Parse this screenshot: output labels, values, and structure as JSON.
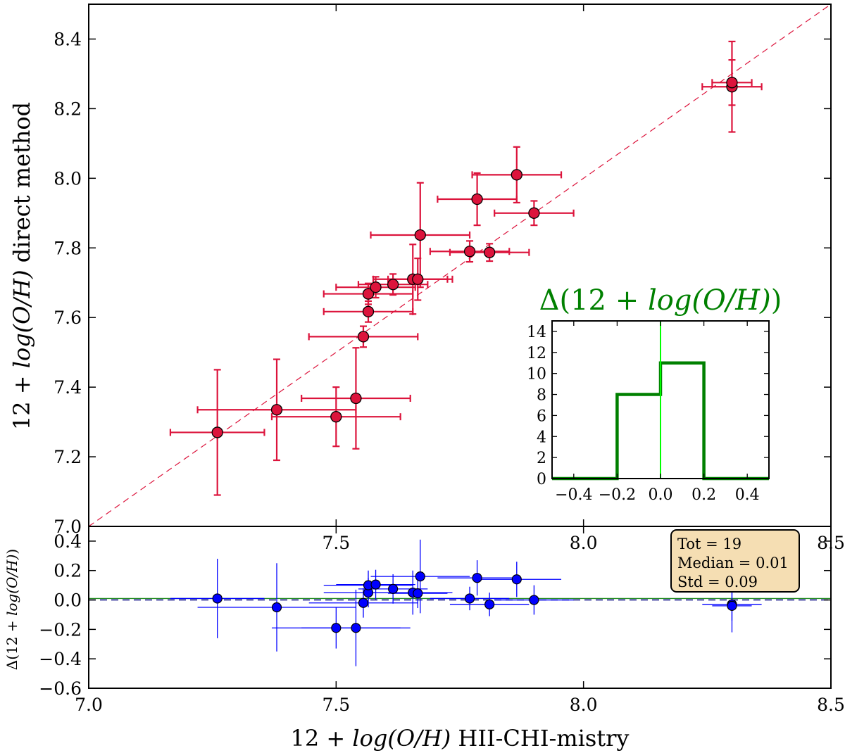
{
  "colors": {
    "main_points": "#dc143c",
    "residual_points": "#0000ff",
    "histogram": "#008000",
    "inset_zero_line": "#00ff00",
    "stats_box_fill": "#f5deb3",
    "residual_median_line": "#228b22",
    "residual_zero_line": "#000080"
  },
  "chart_data": [
    {
      "id": "main",
      "type": "scatter",
      "xlabel_prefix": "12 + ",
      "xlabel_math": "log(O/H)",
      "xlabel_suffix": " HII-CHI-mistry",
      "ylabel_prefix": "12 + ",
      "ylabel_math": "log(O/H)",
      "ylabel_suffix": " direct method",
      "xlim": [
        7.0,
        8.5
      ],
      "ylim": [
        7.0,
        8.5
      ],
      "xticks": [
        "7.5",
        "8.0",
        "8.5"
      ],
      "yticks": [
        "7.0",
        "7.2",
        "7.4",
        "7.6",
        "7.8",
        "8.0",
        "8.2",
        "8.4"
      ],
      "identity_line": true,
      "points": [
        {
          "x": 7.26,
          "y": 7.27,
          "xerr": 0.095,
          "yerr": 0.18
        },
        {
          "x": 7.38,
          "y": 7.335,
          "xerr": 0.16,
          "yerr": 0.145
        },
        {
          "x": 7.5,
          "y": 7.315,
          "xerr": 0.13,
          "yerr": 0.085
        },
        {
          "x": 7.54,
          "y": 7.368,
          "xerr": 0.11,
          "yerr": 0.145
        },
        {
          "x": 7.555,
          "y": 7.545,
          "xerr": 0.11,
          "yerr": 0.03
        },
        {
          "x": 7.565,
          "y": 7.617,
          "xerr": 0.09,
          "yerr": 0.03
        },
        {
          "x": 7.565,
          "y": 7.668,
          "xerr": 0.09,
          "yerr": 0.03
        },
        {
          "x": 7.58,
          "y": 7.687,
          "xerr": 0.08,
          "yerr": 0.03
        },
        {
          "x": 7.615,
          "y": 7.695,
          "xerr": 0.07,
          "yerr": 0.03
        },
        {
          "x": 7.655,
          "y": 7.71,
          "xerr": 0.08,
          "yerr": 0.1
        },
        {
          "x": 7.665,
          "y": 7.71,
          "xerr": 0.06,
          "yerr": 0.06
        },
        {
          "x": 7.67,
          "y": 7.837,
          "xerr": 0.1,
          "yerr": 0.15
        },
        {
          "x": 7.77,
          "y": 7.79,
          "xerr": 0.08,
          "yerr": 0.03
        },
        {
          "x": 7.785,
          "y": 7.94,
          "xerr": 0.08,
          "yerr": 0.075
        },
        {
          "x": 7.81,
          "y": 7.787,
          "xerr": 0.08,
          "yerr": 0.025
        },
        {
          "x": 7.865,
          "y": 8.01,
          "xerr": 0.09,
          "yerr": 0.08
        },
        {
          "x": 7.9,
          "y": 7.9,
          "xerr": 0.08,
          "yerr": 0.035
        },
        {
          "x": 8.3,
          "y": 8.263,
          "xerr": 0.06,
          "yerr": 0.13
        },
        {
          "x": 8.3,
          "y": 8.275,
          "xerr": 0.04,
          "yerr": 0.065
        }
      ]
    },
    {
      "id": "residuals",
      "type": "scatter",
      "ylabel_prefix": "Δ(12 + ",
      "ylabel_math": "log(O/H)",
      "ylabel_suffix": ")",
      "xlim": [
        7.0,
        8.5
      ],
      "ylim": [
        -0.6,
        0.5
      ],
      "xticks": [
        "7.0",
        "7.5",
        "8.0",
        "8.5"
      ],
      "yticks": [
        "−0.6",
        "−0.4",
        "−0.2",
        "0.0",
        "0.2",
        "0.4"
      ],
      "median_line": 0.01,
      "zero_line": 0.0,
      "points": [
        {
          "x": 7.26,
          "y": 0.01,
          "xerr": 0.095,
          "yerr": 0.27
        },
        {
          "x": 7.38,
          "y": -0.05,
          "xerr": 0.16,
          "yerr": 0.3
        },
        {
          "x": 7.5,
          "y": -0.19,
          "xerr": 0.13,
          "yerr": 0.14
        },
        {
          "x": 7.54,
          "y": -0.19,
          "xerr": 0.11,
          "yerr": 0.26
        },
        {
          "x": 7.555,
          "y": -0.02,
          "xerr": 0.11,
          "yerr": 0.1
        },
        {
          "x": 7.565,
          "y": 0.05,
          "xerr": 0.09,
          "yerr": 0.1
        },
        {
          "x": 7.565,
          "y": 0.1,
          "xerr": 0.09,
          "yerr": 0.1
        },
        {
          "x": 7.58,
          "y": 0.105,
          "xerr": 0.08,
          "yerr": 0.1
        },
        {
          "x": 7.615,
          "y": 0.075,
          "xerr": 0.07,
          "yerr": 0.1
        },
        {
          "x": 7.655,
          "y": 0.05,
          "xerr": 0.08,
          "yerr": 0.15
        },
        {
          "x": 7.665,
          "y": 0.045,
          "xerr": 0.06,
          "yerr": 0.1
        },
        {
          "x": 7.67,
          "y": 0.16,
          "xerr": 0.1,
          "yerr": 0.25
        },
        {
          "x": 7.77,
          "y": 0.01,
          "xerr": 0.08,
          "yerr": 0.08
        },
        {
          "x": 7.785,
          "y": 0.15,
          "xerr": 0.08,
          "yerr": 0.12
        },
        {
          "x": 7.81,
          "y": -0.03,
          "xerr": 0.08,
          "yerr": 0.08
        },
        {
          "x": 7.865,
          "y": 0.14,
          "xerr": 0.09,
          "yerr": 0.12
        },
        {
          "x": 7.9,
          "y": 0.0,
          "xerr": 0.08,
          "yerr": 0.1
        },
        {
          "x": 8.3,
          "y": -0.03,
          "xerr": 0.06,
          "yerr": 0.19
        },
        {
          "x": 8.3,
          "y": -0.04,
          "xerr": 0.04,
          "yerr": 0.1
        }
      ]
    },
    {
      "id": "histogram",
      "type": "bar",
      "title_prefix": "Δ(12 + ",
      "title_math": "log(O/H)",
      "title_suffix": ")",
      "bin_edges": [
        -0.4,
        -0.2,
        0.0,
        0.2,
        0.4
      ],
      "counts": [
        0,
        8,
        11,
        0
      ],
      "xlim": [
        -0.5,
        0.5
      ],
      "ylim": [
        0,
        15
      ],
      "xticks": [
        "−0.4",
        "−0.2",
        "0.0",
        "0.2",
        "0.4"
      ],
      "yticks": [
        "0",
        "2",
        "4",
        "6",
        "8",
        "10",
        "12",
        "14"
      ],
      "zero_line": 0.0
    }
  ],
  "stats": {
    "tot": "Tot = 19",
    "median": "Median = 0.01",
    "std": "Std = 0.09"
  }
}
